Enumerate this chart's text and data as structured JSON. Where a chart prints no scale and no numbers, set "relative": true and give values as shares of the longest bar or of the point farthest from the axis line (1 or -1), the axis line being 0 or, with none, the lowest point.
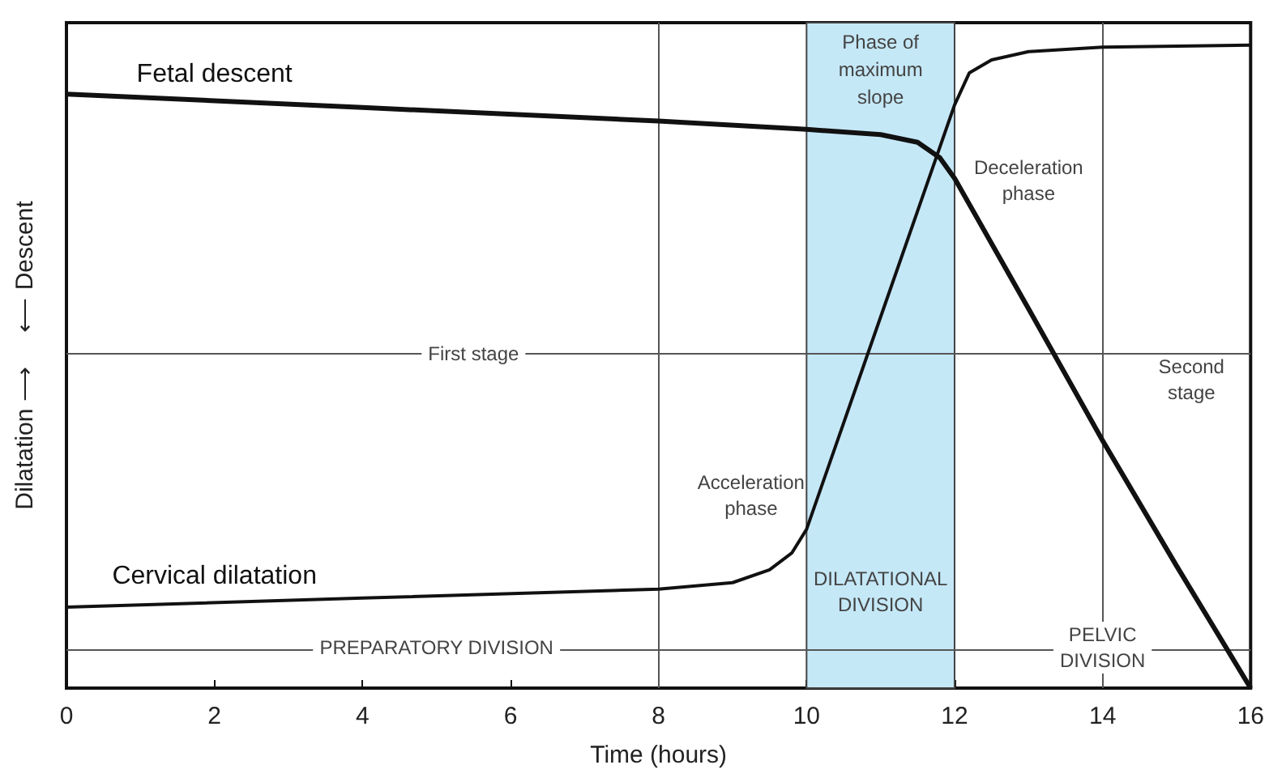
{
  "chart_data": {
    "type": "line",
    "relative": true,
    "xlabel": "Time (hours)",
    "ylabel": "Dilatation ⟶     ⟵ Descent",
    "xlim": [
      0,
      16
    ],
    "xticks": [
      0,
      2,
      4,
      6,
      8,
      10,
      12,
      14,
      16
    ],
    "series": [
      {
        "name": "Fetal descent",
        "color": "#111111",
        "x": [
          0,
          4,
          8,
          10,
          11,
          11.5,
          11.8,
          12,
          13,
          14,
          15,
          16
        ],
        "values": [
          0.924,
          0.903,
          0.882,
          0.869,
          0.861,
          0.849,
          0.825,
          0.793,
          0.59,
          0.385,
          0.19,
          0
        ]
      },
      {
        "name": "Cervical dilatation",
        "color": "#111111",
        "x": [
          0,
          4,
          8,
          9,
          9.5,
          9.8,
          10,
          11,
          12,
          12.2,
          12.5,
          13,
          14,
          16
        ],
        "values": [
          0.126,
          0.14,
          0.154,
          0.164,
          0.184,
          0.21,
          0.247,
          0.577,
          0.907,
          0.957,
          0.977,
          0.99,
          0.997,
          1
        ]
      }
    ],
    "bands": [
      {
        "axis": "x",
        "from": 10,
        "to": 12,
        "label": "Phase of\nmaximum\nslope",
        "color": "#c5e8f7"
      }
    ],
    "ref_lines": [
      {
        "axis": "x",
        "value": 8
      },
      {
        "axis": "x",
        "value": 14
      },
      {
        "axis": "y",
        "value": 0.52
      },
      {
        "axis": "y",
        "value": 0.063
      }
    ],
    "annotations": [
      {
        "text": "First stage",
        "x": 5.5,
        "y": 0.52
      },
      "Second\nstage",
      "Acceleration\nphase",
      "Deceleration\nphase",
      "DILATATIONAL\nDIVISION",
      {
        "text": "PREPARATORY DIVISION",
        "x": 5,
        "y": 0.063
      },
      {
        "text": "PELVIC\nDIVISION",
        "x": 14,
        "y": 0.063
      }
    ]
  }
}
